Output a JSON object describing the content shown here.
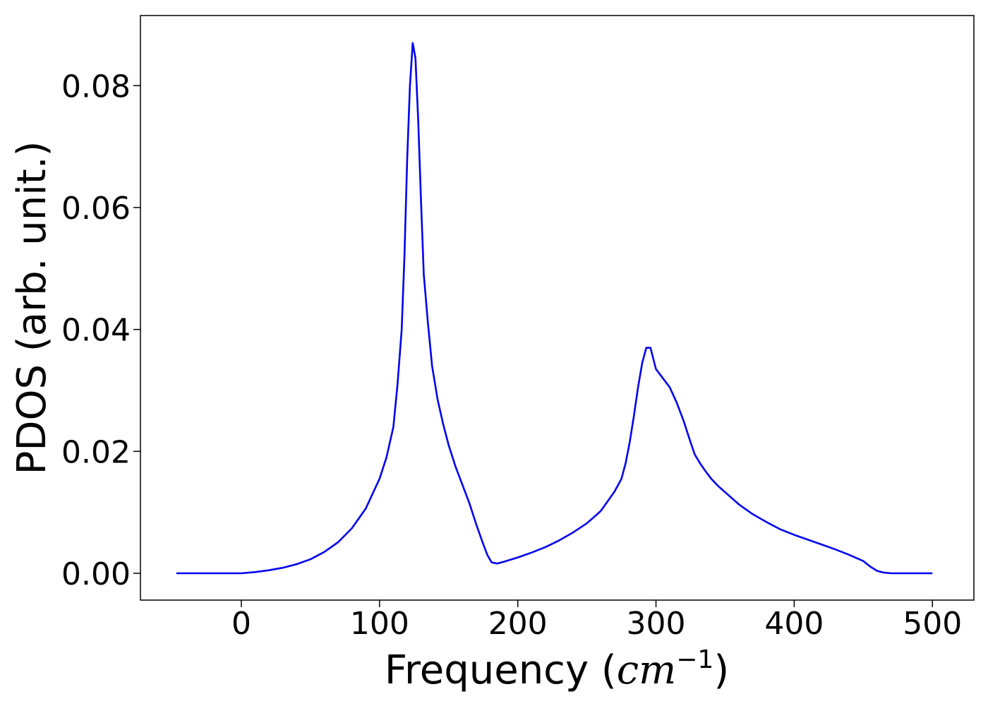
{
  "chart_data": {
    "type": "line",
    "xlabel_text": "Frequency (",
    "xlabel_math": "cm",
    "xlabel_sup": "−1",
    "xlabel_close": ")",
    "ylabel": "PDOS (arb. unit.)",
    "xlim": [
      -73,
      530
    ],
    "ylim": [
      -0.0044,
      0.0915
    ],
    "xticks": [
      0,
      100,
      200,
      300,
      400,
      500
    ],
    "xtick_labels": [
      "0",
      "100",
      "200",
      "300",
      "400",
      "500"
    ],
    "yticks": [
      0.0,
      0.02,
      0.04,
      0.06,
      0.08
    ],
    "ytick_labels": [
      "0.00",
      "0.02",
      "0.04",
      "0.06",
      "0.08"
    ],
    "grid": false,
    "series": [
      {
        "color": "#0000ee",
        "x": [
          -47,
          0,
          10,
          20,
          30,
          40,
          50,
          60,
          70,
          80,
          90,
          100,
          105,
          110,
          113,
          116,
          118,
          120,
          122,
          124,
          126,
          128,
          130,
          132,
          135,
          138,
          142,
          146,
          150,
          155,
          160,
          165,
          170,
          175,
          178,
          181,
          185,
          190,
          200,
          210,
          220,
          230,
          240,
          250,
          255,
          260,
          265,
          270,
          275,
          278,
          281,
          284,
          287,
          290,
          293,
          296,
          300,
          305,
          310,
          315,
          320,
          325,
          328,
          332,
          336,
          340,
          345,
          350,
          360,
          370,
          380,
          390,
          400,
          410,
          420,
          430,
          440,
          450,
          455,
          460,
          465,
          470,
          480,
          500
        ],
        "y": [
          0.0,
          0.0,
          0.0002,
          0.0005,
          0.0009,
          0.0015,
          0.0023,
          0.0035,
          0.0051,
          0.0074,
          0.0106,
          0.0155,
          0.019,
          0.024,
          0.031,
          0.04,
          0.052,
          0.068,
          0.08,
          0.087,
          0.0845,
          0.074,
          0.061,
          0.049,
          0.041,
          0.034,
          0.0285,
          0.0245,
          0.021,
          0.0175,
          0.0145,
          0.0115,
          0.008,
          0.0048,
          0.003,
          0.0018,
          0.0016,
          0.0019,
          0.0026,
          0.0034,
          0.0043,
          0.0054,
          0.0067,
          0.0082,
          0.0092,
          0.0102,
          0.0118,
          0.0134,
          0.0155,
          0.018,
          0.0215,
          0.0258,
          0.0305,
          0.0345,
          0.037,
          0.037,
          0.0335,
          0.032,
          0.0305,
          0.028,
          0.025,
          0.0215,
          0.0195,
          0.018,
          0.0167,
          0.0155,
          0.0143,
          0.0133,
          0.0113,
          0.0097,
          0.0084,
          0.0072,
          0.0063,
          0.0055,
          0.0047,
          0.0039,
          0.003,
          0.002,
          0.0011,
          0.0004,
          0.0001,
          0.0,
          0.0,
          0.0
        ]
      }
    ]
  }
}
